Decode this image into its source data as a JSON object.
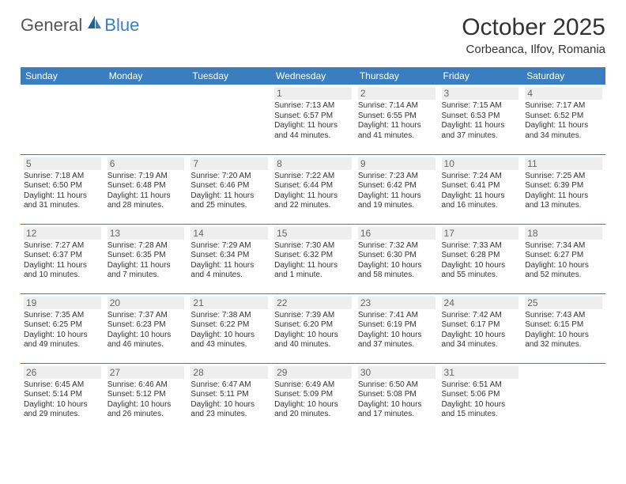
{
  "logo": {
    "general": "General",
    "blue": "Blue"
  },
  "colors": {
    "brand_blue": "#3b7ec0",
    "header_text": "#ffffff",
    "daynum_bg": "#eeeeee",
    "text": "#333333"
  },
  "header": {
    "month_title": "October 2025",
    "location": "Corbeanca, Ilfov, Romania"
  },
  "weekdays": [
    "Sunday",
    "Monday",
    "Tuesday",
    "Wednesday",
    "Thursday",
    "Friday",
    "Saturday"
  ],
  "weeks": [
    [
      null,
      null,
      null,
      {
        "n": "1",
        "sr": "Sunrise: 7:13 AM",
        "ss": "Sunset: 6:57 PM",
        "d1": "Daylight: 11 hours",
        "d2": "and 44 minutes."
      },
      {
        "n": "2",
        "sr": "Sunrise: 7:14 AM",
        "ss": "Sunset: 6:55 PM",
        "d1": "Daylight: 11 hours",
        "d2": "and 41 minutes."
      },
      {
        "n": "3",
        "sr": "Sunrise: 7:15 AM",
        "ss": "Sunset: 6:53 PM",
        "d1": "Daylight: 11 hours",
        "d2": "and 37 minutes."
      },
      {
        "n": "4",
        "sr": "Sunrise: 7:17 AM",
        "ss": "Sunset: 6:52 PM",
        "d1": "Daylight: 11 hours",
        "d2": "and 34 minutes."
      }
    ],
    [
      {
        "n": "5",
        "sr": "Sunrise: 7:18 AM",
        "ss": "Sunset: 6:50 PM",
        "d1": "Daylight: 11 hours",
        "d2": "and 31 minutes."
      },
      {
        "n": "6",
        "sr": "Sunrise: 7:19 AM",
        "ss": "Sunset: 6:48 PM",
        "d1": "Daylight: 11 hours",
        "d2": "and 28 minutes."
      },
      {
        "n": "7",
        "sr": "Sunrise: 7:20 AM",
        "ss": "Sunset: 6:46 PM",
        "d1": "Daylight: 11 hours",
        "d2": "and 25 minutes."
      },
      {
        "n": "8",
        "sr": "Sunrise: 7:22 AM",
        "ss": "Sunset: 6:44 PM",
        "d1": "Daylight: 11 hours",
        "d2": "and 22 minutes."
      },
      {
        "n": "9",
        "sr": "Sunrise: 7:23 AM",
        "ss": "Sunset: 6:42 PM",
        "d1": "Daylight: 11 hours",
        "d2": "and 19 minutes."
      },
      {
        "n": "10",
        "sr": "Sunrise: 7:24 AM",
        "ss": "Sunset: 6:41 PM",
        "d1": "Daylight: 11 hours",
        "d2": "and 16 minutes."
      },
      {
        "n": "11",
        "sr": "Sunrise: 7:25 AM",
        "ss": "Sunset: 6:39 PM",
        "d1": "Daylight: 11 hours",
        "d2": "and 13 minutes."
      }
    ],
    [
      {
        "n": "12",
        "sr": "Sunrise: 7:27 AM",
        "ss": "Sunset: 6:37 PM",
        "d1": "Daylight: 11 hours",
        "d2": "and 10 minutes."
      },
      {
        "n": "13",
        "sr": "Sunrise: 7:28 AM",
        "ss": "Sunset: 6:35 PM",
        "d1": "Daylight: 11 hours",
        "d2": "and 7 minutes."
      },
      {
        "n": "14",
        "sr": "Sunrise: 7:29 AM",
        "ss": "Sunset: 6:34 PM",
        "d1": "Daylight: 11 hours",
        "d2": "and 4 minutes."
      },
      {
        "n": "15",
        "sr": "Sunrise: 7:30 AM",
        "ss": "Sunset: 6:32 PM",
        "d1": "Daylight: 11 hours",
        "d2": "and 1 minute."
      },
      {
        "n": "16",
        "sr": "Sunrise: 7:32 AM",
        "ss": "Sunset: 6:30 PM",
        "d1": "Daylight: 10 hours",
        "d2": "and 58 minutes."
      },
      {
        "n": "17",
        "sr": "Sunrise: 7:33 AM",
        "ss": "Sunset: 6:28 PM",
        "d1": "Daylight: 10 hours",
        "d2": "and 55 minutes."
      },
      {
        "n": "18",
        "sr": "Sunrise: 7:34 AM",
        "ss": "Sunset: 6:27 PM",
        "d1": "Daylight: 10 hours",
        "d2": "and 52 minutes."
      }
    ],
    [
      {
        "n": "19",
        "sr": "Sunrise: 7:35 AM",
        "ss": "Sunset: 6:25 PM",
        "d1": "Daylight: 10 hours",
        "d2": "and 49 minutes."
      },
      {
        "n": "20",
        "sr": "Sunrise: 7:37 AM",
        "ss": "Sunset: 6:23 PM",
        "d1": "Daylight: 10 hours",
        "d2": "and 46 minutes."
      },
      {
        "n": "21",
        "sr": "Sunrise: 7:38 AM",
        "ss": "Sunset: 6:22 PM",
        "d1": "Daylight: 10 hours",
        "d2": "and 43 minutes."
      },
      {
        "n": "22",
        "sr": "Sunrise: 7:39 AM",
        "ss": "Sunset: 6:20 PM",
        "d1": "Daylight: 10 hours",
        "d2": "and 40 minutes."
      },
      {
        "n": "23",
        "sr": "Sunrise: 7:41 AM",
        "ss": "Sunset: 6:19 PM",
        "d1": "Daylight: 10 hours",
        "d2": "and 37 minutes."
      },
      {
        "n": "24",
        "sr": "Sunrise: 7:42 AM",
        "ss": "Sunset: 6:17 PM",
        "d1": "Daylight: 10 hours",
        "d2": "and 34 minutes."
      },
      {
        "n": "25",
        "sr": "Sunrise: 7:43 AM",
        "ss": "Sunset: 6:15 PM",
        "d1": "Daylight: 10 hours",
        "d2": "and 32 minutes."
      }
    ],
    [
      {
        "n": "26",
        "sr": "Sunrise: 6:45 AM",
        "ss": "Sunset: 5:14 PM",
        "d1": "Daylight: 10 hours",
        "d2": "and 29 minutes."
      },
      {
        "n": "27",
        "sr": "Sunrise: 6:46 AM",
        "ss": "Sunset: 5:12 PM",
        "d1": "Daylight: 10 hours",
        "d2": "and 26 minutes."
      },
      {
        "n": "28",
        "sr": "Sunrise: 6:47 AM",
        "ss": "Sunset: 5:11 PM",
        "d1": "Daylight: 10 hours",
        "d2": "and 23 minutes."
      },
      {
        "n": "29",
        "sr": "Sunrise: 6:49 AM",
        "ss": "Sunset: 5:09 PM",
        "d1": "Daylight: 10 hours",
        "d2": "and 20 minutes."
      },
      {
        "n": "30",
        "sr": "Sunrise: 6:50 AM",
        "ss": "Sunset: 5:08 PM",
        "d1": "Daylight: 10 hours",
        "d2": "and 17 minutes."
      },
      {
        "n": "31",
        "sr": "Sunrise: 6:51 AM",
        "ss": "Sunset: 5:06 PM",
        "d1": "Daylight: 10 hours",
        "d2": "and 15 minutes."
      },
      null
    ]
  ]
}
